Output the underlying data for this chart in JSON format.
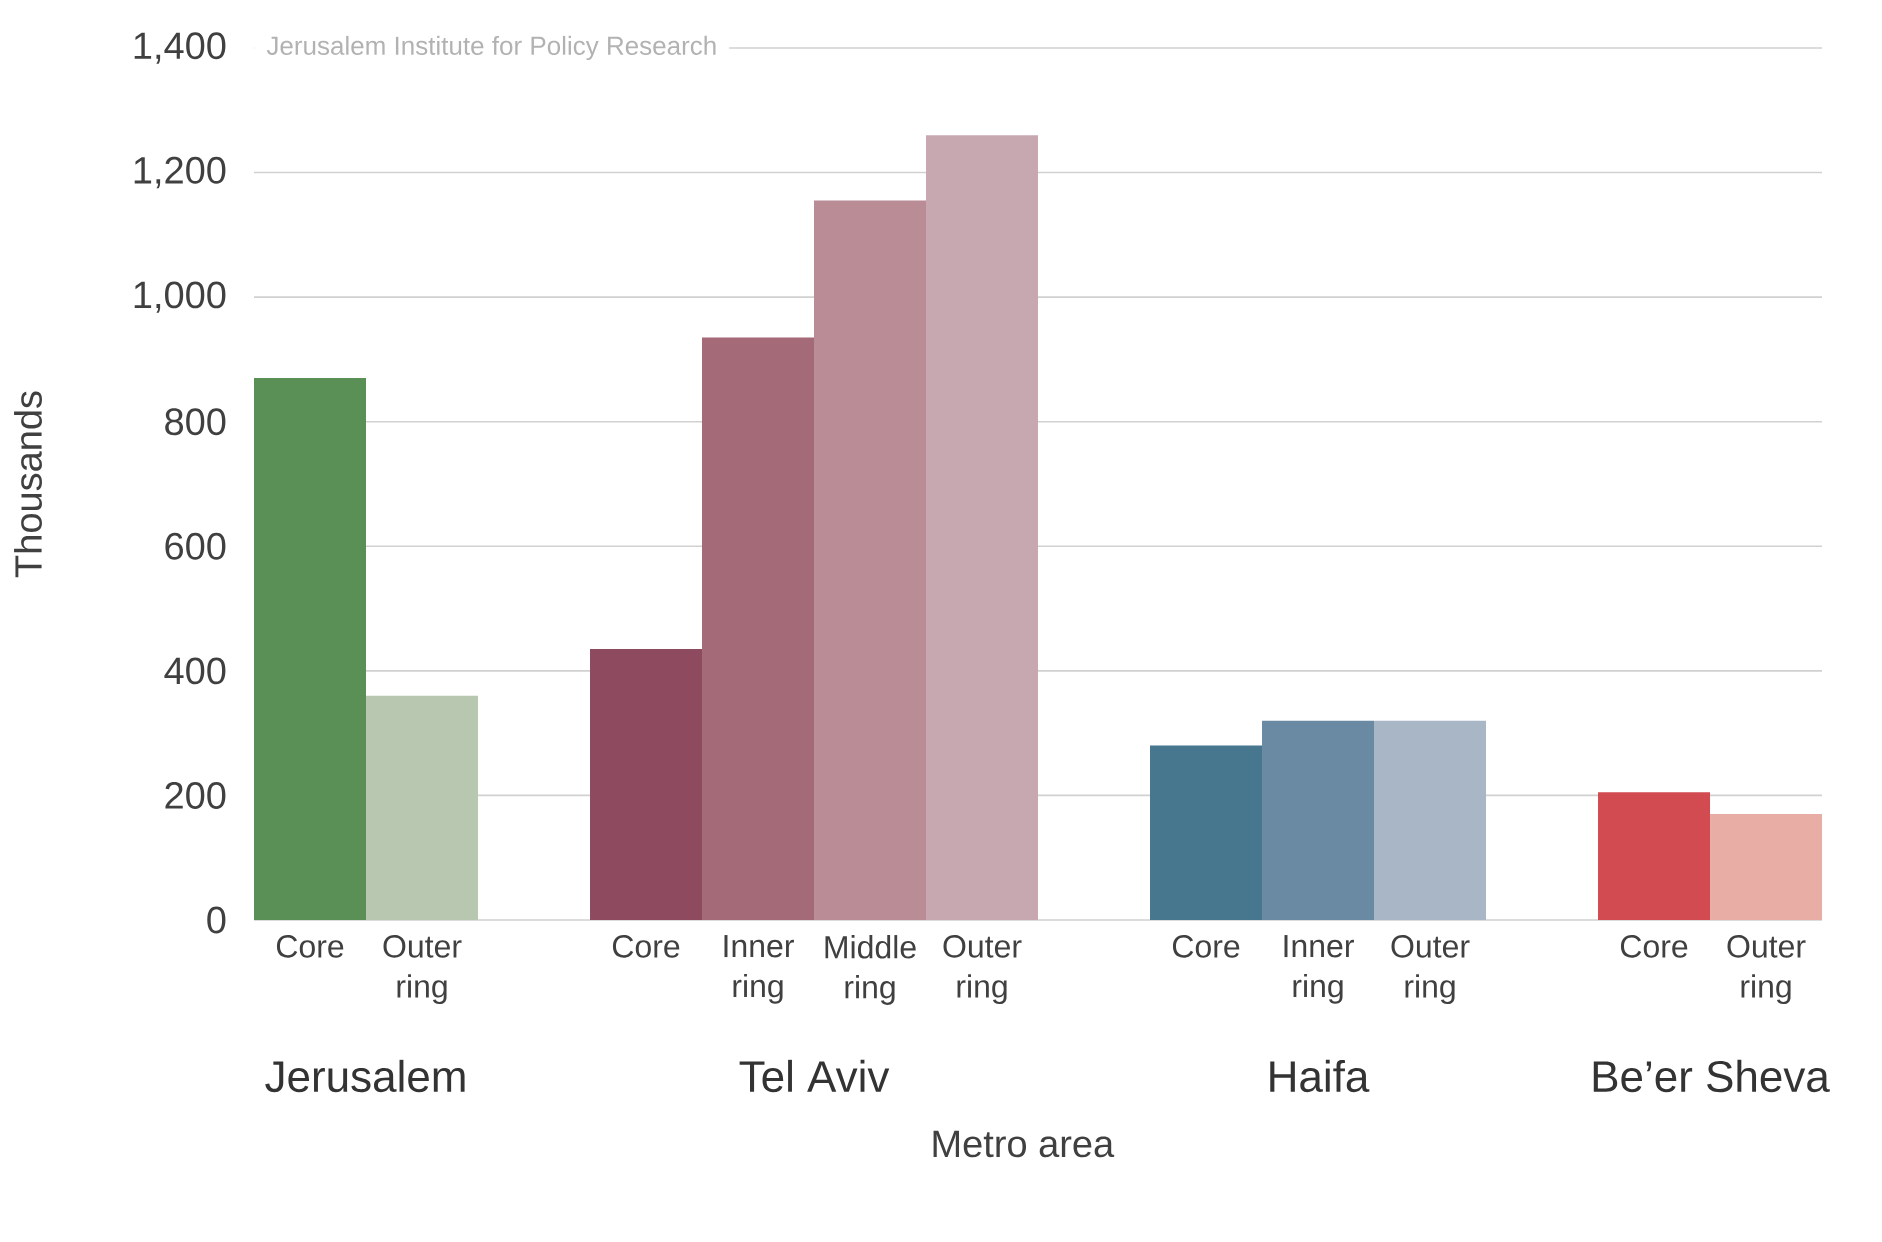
{
  "chart_data": {
    "type": "bar",
    "ylabel": "Thousands",
    "xlabel": "Metro area",
    "categories": [
      "Core",
      "Outer ring",
      null,
      "Core",
      "Inner ring",
      "Middle ring",
      "Outer ring",
      null,
      "Core",
      "Inner ring",
      "Outer ring",
      null,
      "Core",
      "Outer ring"
    ],
    "values": [
      870,
      360,
      null,
      435,
      935,
      1155,
      1260,
      null,
      280,
      320,
      320,
      null,
      205,
      170
    ],
    "colors": [
      "#5a8f55",
      "#b8c8b0",
      null,
      "#8e4a5f",
      "#a46a78",
      "#b98c96",
      "#c8a8b0",
      null,
      "#46778f",
      "#6a8aa3",
      "#a9b6c6",
      null,
      "#d14b50",
      "#e8aea6"
    ],
    "ylim": [
      0,
      1400
    ],
    "yticks": [
      0,
      200,
      400,
      600,
      800,
      {
        "value": 1000,
        "label": "1,000"
      },
      {
        "value": 1200,
        "label": "1,200"
      },
      {
        "value": 1400,
        "label": "1,400"
      }
    ],
    "grid": "y",
    "annotations": [
      "Jerusalem Institute for Policy Research",
      "Jerusalem",
      "Tel Aviv",
      "Haifa",
      "Be’er Sheva"
    ]
  }
}
